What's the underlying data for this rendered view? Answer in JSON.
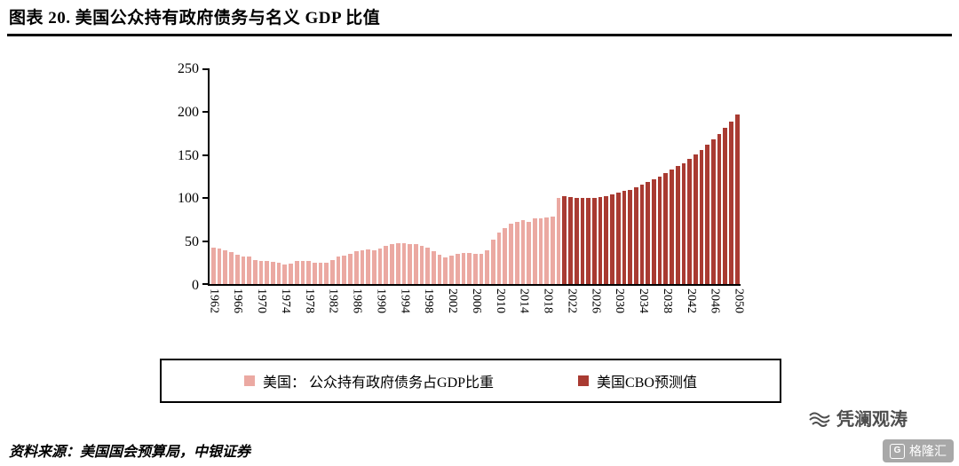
{
  "header": {
    "title": "图表 20. 美国公众持有政府债务与名义 GDP 比值"
  },
  "legend": {
    "items": [
      {
        "label": "美国： 公众持有政府债务占GDP比重",
        "color": "#EBA9A2"
      },
      {
        "label": "美国CBO预测值",
        "color": "#A93B32"
      }
    ]
  },
  "footer": {
    "source": "资料来源：美国国会预算局，中银证券"
  },
  "watermark": {
    "text": "凭澜观涛",
    "logo_text": "格隆汇",
    "logo_icon": "G"
  },
  "colors": {
    "historical": "#EBA9A2",
    "forecast": "#A93B32",
    "axis": "#000000"
  },
  "chart_data": {
    "type": "bar",
    "title": "图表 20. 美国公众持有政府债务与名义 GDP 比值",
    "xlabel": "",
    "ylabel": "",
    "year_start": 1962,
    "year_end": 2050,
    "forecast_start_year": 2021,
    "ylim": [
      0,
      250
    ],
    "yticks": [
      0,
      50,
      100,
      150,
      200,
      250
    ],
    "xtick_labels": [
      1962,
      1966,
      1970,
      1974,
      1978,
      1982,
      1986,
      1990,
      1994,
      1998,
      2002,
      2006,
      2010,
      2014,
      2018,
      2022,
      2026,
      2030,
      2034,
      2038,
      2042,
      2046,
      2050
    ],
    "grid": false,
    "legend_position": "bottom",
    "series": [
      {
        "name": "美国： 公众持有政府债务占GDP比重",
        "color": "#EBA9A2",
        "range": "1962-2020"
      },
      {
        "name": "美国CBO预测值",
        "color": "#A93B32",
        "range": "2021-2050"
      }
    ],
    "values": [
      42,
      41,
      39,
      37,
      34,
      32,
      32,
      28,
      27,
      27,
      26,
      25,
      23,
      24,
      27,
      27,
      27,
      25,
      25,
      25,
      28,
      32,
      33,
      35,
      38,
      39,
      40,
      39,
      41,
      44,
      46,
      48,
      48,
      47,
      47,
      44,
      42,
      38,
      34,
      31,
      33,
      35,
      36,
      36,
      35,
      35,
      39,
      52,
      60,
      65,
      70,
      72,
      74,
      72,
      76,
      76,
      77,
      79,
      100,
      102,
      101,
      100,
      100,
      100,
      100,
      101,
      102,
      104,
      106,
      108,
      110,
      113,
      116,
      119,
      122,
      125,
      129,
      133,
      137,
      141,
      146,
      151,
      156,
      162,
      168,
      175,
      182,
      189,
      197
    ]
  }
}
